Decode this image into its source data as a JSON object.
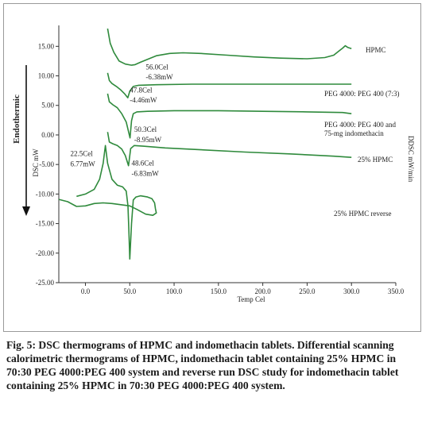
{
  "chart_data": {
    "type": "line",
    "title": "",
    "xlabel": "Temp Cel",
    "ylabel": "DSC mW",
    "y2label": "DDSC mW/min",
    "side_label": "Endothermic",
    "xlim": [
      -30,
      350
    ],
    "ylim": [
      -25,
      18
    ],
    "xticks": [
      0,
      50,
      100,
      150,
      200,
      250,
      300,
      350
    ],
    "xtick_labels": [
      "0.0",
      "50.0",
      "100.0",
      "150.0",
      "200.0",
      "250.0",
      "300.0",
      "350.0"
    ],
    "yticks": [
      15,
      10,
      5,
      0,
      -5,
      -10,
      -15,
      -20,
      -25
    ],
    "ytick_labels": [
      "15.00",
      "10.00",
      "5.00",
      "0.00",
      "-5.00",
      "-10.00",
      "-15.00",
      "-20.00",
      "-25.00"
    ],
    "grid": false,
    "series": [
      {
        "name": "HPMC",
        "color": "#2f8a3c",
        "x": [
          25,
          28,
          32,
          38,
          45,
          52,
          56,
          62,
          70,
          80,
          95,
          110,
          130,
          160,
          190,
          220,
          250,
          270,
          280,
          285,
          290,
          293,
          296,
          300
        ],
        "y": [
          18,
          15.5,
          14,
          12.5,
          12,
          11.8,
          11.9,
          12.3,
          12.8,
          13.4,
          13.8,
          13.9,
          13.8,
          13.5,
          13.2,
          13,
          12.9,
          13.1,
          13.5,
          14.1,
          14.7,
          15.1,
          14.8,
          14.6
        ]
      },
      {
        "name": "PEG 4000: PEG 400 (7:3)",
        "color": "#2f8a3c",
        "x": [
          25,
          27,
          30,
          35,
          40,
          44,
          47.8,
          50,
          54,
          60,
          80,
          120,
          200,
          300
        ],
        "y": [
          10.5,
          9.2,
          8.7,
          8.2,
          7.6,
          7,
          6.3,
          7.4,
          8.2,
          8.4,
          8.5,
          8.6,
          8.6,
          8.6
        ]
      },
      {
        "name": "PEG 4000: PEG 400 and 75-mg indomethacin",
        "color": "#2f8a3c",
        "x": [
          25,
          27,
          31,
          36,
          41,
          46,
          50.3,
          52,
          54,
          58,
          70,
          100,
          150,
          200,
          250,
          290,
          300
        ],
        "y": [
          7,
          5.6,
          5.1,
          4.6,
          3.6,
          2.2,
          -0.5,
          2.4,
          3.6,
          3.9,
          4,
          4.1,
          4.1,
          4,
          3.9,
          3.8,
          3.6
        ]
      },
      {
        "name": "25% HPMC",
        "color": "#2f8a3c",
        "x": [
          25,
          27,
          31,
          36,
          41,
          45,
          48.6,
          51,
          55,
          65,
          90,
          130,
          180,
          230,
          280,
          300
        ],
        "y": [
          0.5,
          -1.2,
          -1.5,
          -1.8,
          -2.4,
          -3.5,
          -5.2,
          -2.3,
          -1.8,
          -1.9,
          -2.2,
          -2.5,
          -2.9,
          -3.2,
          -3.6,
          -3.8
        ]
      },
      {
        "name": "25% HPMC reverse",
        "color": "#2f8a3c",
        "x": [
          -10,
          0,
          10,
          16,
          20,
          22.5,
          25,
          30,
          36,
          42,
          46,
          48,
          49,
          50,
          52,
          54,
          57,
          62,
          70,
          75,
          78,
          79,
          80,
          76,
          68,
          58,
          50,
          40,
          30,
          20,
          10,
          0,
          -10,
          -20,
          -30
        ],
        "y": [
          -10.4,
          -10,
          -9.2,
          -7.5,
          -4.8,
          -1.8,
          -4.8,
          -7.5,
          -8.5,
          -8.8,
          -9.5,
          -12,
          -16,
          -21,
          -15,
          -11,
          -10.5,
          -10.3,
          -10.5,
          -10.8,
          -11.5,
          -12.5,
          -13.2,
          -13.6,
          -13.4,
          -12.6,
          -12,
          -11.8,
          -11.6,
          -11.5,
          -11.6,
          -12,
          -12.1,
          -11.3,
          -10.9
        ]
      }
    ],
    "annotations": [
      {
        "text": "56.0Cel",
        "x": 68,
        "y": 11.1
      },
      {
        "text": "-6.38mW",
        "x": 68,
        "y": 9.4
      },
      {
        "text": "47.8Cel",
        "x": 50,
        "y": 7.2
      },
      {
        "text": "-4.46mW",
        "x": 50,
        "y": 5.5
      },
      {
        "text": "50.3Cel",
        "x": 55,
        "y": 0.5
      },
      {
        "text": "-8.95mW",
        "x": 55,
        "y": -1.2
      },
      {
        "text": "48.6Cel",
        "x": 52,
        "y": -5.2
      },
      {
        "text": "-6.83mW",
        "x": 52,
        "y": -6.9
      },
      {
        "text": "22.5Cel",
        "x": -17,
        "y": -3.6
      },
      {
        "text": "6.77mW",
        "x": -17,
        "y": -5.3
      }
    ]
  },
  "caption": {
    "title": "Fig. 5: DSC thermograms of HPMC and indomethacin tablets.",
    "body": "Differential scanning calorimetric thermograms of HPMC, indomethacin tablet containing 25% HPMC in 70:30 PEG 4000:PEG 400 system and reverse run DSC study for indomethacin tablet containing 25% HPMC in 70:30 PEG 4000:PEG 400 system."
  }
}
